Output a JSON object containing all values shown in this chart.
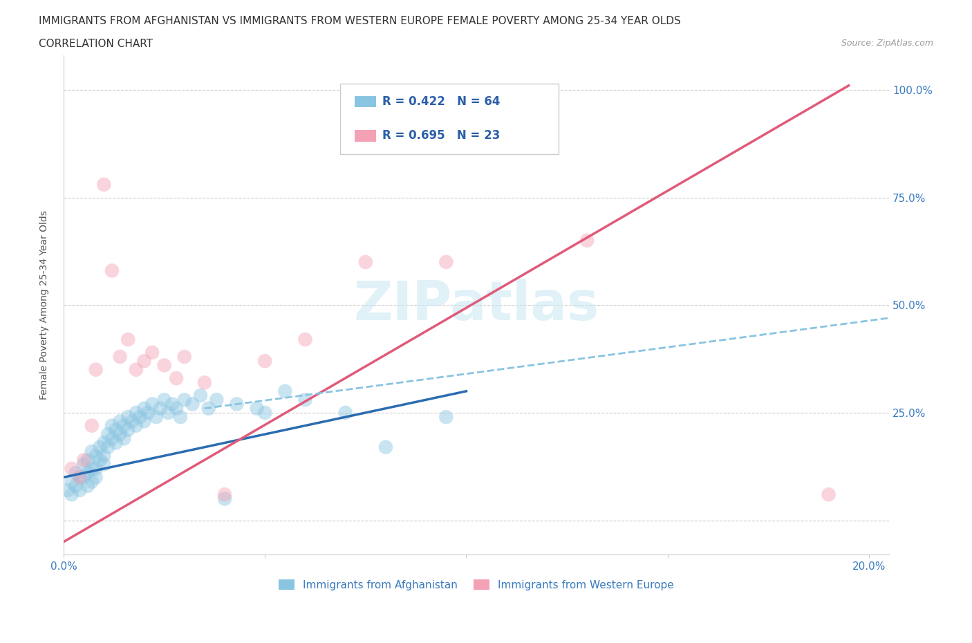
{
  "title_line1": "IMMIGRANTS FROM AFGHANISTAN VS IMMIGRANTS FROM WESTERN EUROPE FEMALE POVERTY AMONG 25-34 YEAR OLDS",
  "title_line2": "CORRELATION CHART",
  "source_text": "Source: ZipAtlas.com",
  "ylabel": "Female Poverty Among 25-34 Year Olds",
  "xlim": [
    0.0,
    0.205
  ],
  "ylim": [
    -0.08,
    1.08
  ],
  "xticks": [
    0.0,
    0.05,
    0.1,
    0.15,
    0.2
  ],
  "xticklabels": [
    "0.0%",
    "",
    "",
    "",
    "20.0%"
  ],
  "yticks": [
    0.0,
    0.25,
    0.5,
    0.75,
    1.0
  ],
  "yticklabels_right": [
    "",
    "25.0%",
    "50.0%",
    "75.0%",
    "100.0%"
  ],
  "color_blue": "#89c4e1",
  "color_pink": "#f4a0b5",
  "trendline_blue": "#2b6cb0",
  "trendline_pink": "#e05a7a",
  "trendline_dashed_color": "#89c4e1",
  "legend_r_blue": "R = 0.422",
  "legend_n_blue": "N = 64",
  "legend_r_pink": "R = 0.695",
  "legend_n_pink": "N = 23",
  "legend_label_blue": "Immigrants from Afghanistan",
  "legend_label_pink": "Immigrants from Western Europe",
  "watermark": "ZIPatlas",
  "title_fontsize": 11,
  "label_fontsize": 10,
  "tick_fontsize": 11,
  "blue_scatter": [
    [
      0.001,
      0.07
    ],
    [
      0.002,
      0.09
    ],
    [
      0.002,
      0.06
    ],
    [
      0.003,
      0.11
    ],
    [
      0.003,
      0.08
    ],
    [
      0.004,
      0.1
    ],
    [
      0.004,
      0.07
    ],
    [
      0.005,
      0.13
    ],
    [
      0.005,
      0.1
    ],
    [
      0.006,
      0.14
    ],
    [
      0.006,
      0.11
    ],
    [
      0.006,
      0.08
    ],
    [
      0.007,
      0.12
    ],
    [
      0.007,
      0.09
    ],
    [
      0.007,
      0.16
    ],
    [
      0.008,
      0.15
    ],
    [
      0.008,
      0.12
    ],
    [
      0.008,
      0.1
    ],
    [
      0.009,
      0.17
    ],
    [
      0.009,
      0.14
    ],
    [
      0.01,
      0.18
    ],
    [
      0.01,
      0.15
    ],
    [
      0.01,
      0.13
    ],
    [
      0.011,
      0.2
    ],
    [
      0.011,
      0.17
    ],
    [
      0.012,
      0.19
    ],
    [
      0.012,
      0.22
    ],
    [
      0.013,
      0.21
    ],
    [
      0.013,
      0.18
    ],
    [
      0.014,
      0.23
    ],
    [
      0.014,
      0.2
    ],
    [
      0.015,
      0.22
    ],
    [
      0.015,
      0.19
    ],
    [
      0.016,
      0.24
    ],
    [
      0.016,
      0.21
    ],
    [
      0.017,
      0.23
    ],
    [
      0.018,
      0.25
    ],
    [
      0.018,
      0.22
    ],
    [
      0.019,
      0.24
    ],
    [
      0.02,
      0.26
    ],
    [
      0.02,
      0.23
    ],
    [
      0.021,
      0.25
    ],
    [
      0.022,
      0.27
    ],
    [
      0.023,
      0.24
    ],
    [
      0.024,
      0.26
    ],
    [
      0.025,
      0.28
    ],
    [
      0.026,
      0.25
    ],
    [
      0.027,
      0.27
    ],
    [
      0.028,
      0.26
    ],
    [
      0.029,
      0.24
    ],
    [
      0.03,
      0.28
    ],
    [
      0.032,
      0.27
    ],
    [
      0.034,
      0.29
    ],
    [
      0.036,
      0.26
    ],
    [
      0.038,
      0.28
    ],
    [
      0.04,
      0.05
    ],
    [
      0.043,
      0.27
    ],
    [
      0.048,
      0.26
    ],
    [
      0.05,
      0.25
    ],
    [
      0.055,
      0.3
    ],
    [
      0.06,
      0.28
    ],
    [
      0.07,
      0.25
    ],
    [
      0.08,
      0.17
    ],
    [
      0.095,
      0.24
    ]
  ],
  "pink_scatter": [
    [
      0.002,
      0.12
    ],
    [
      0.004,
      0.1
    ],
    [
      0.005,
      0.14
    ],
    [
      0.007,
      0.22
    ],
    [
      0.008,
      0.35
    ],
    [
      0.01,
      0.78
    ],
    [
      0.012,
      0.58
    ],
    [
      0.014,
      0.38
    ],
    [
      0.016,
      0.42
    ],
    [
      0.018,
      0.35
    ],
    [
      0.02,
      0.37
    ],
    [
      0.022,
      0.39
    ],
    [
      0.025,
      0.36
    ],
    [
      0.028,
      0.33
    ],
    [
      0.03,
      0.38
    ],
    [
      0.035,
      0.32
    ],
    [
      0.04,
      0.06
    ],
    [
      0.05,
      0.37
    ],
    [
      0.06,
      0.42
    ],
    [
      0.075,
      0.6
    ],
    [
      0.095,
      0.6
    ],
    [
      0.13,
      0.65
    ],
    [
      0.19,
      0.06
    ]
  ],
  "blue_trendline_x": [
    0.0,
    0.1
  ],
  "blue_trendline_y": [
    0.1,
    0.3
  ],
  "pink_trendline_x": [
    0.0,
    0.195
  ],
  "pink_trendline_y": [
    -0.05,
    1.01
  ],
  "dashed_trendline_x": [
    0.035,
    0.205
  ],
  "dashed_trendline_y": [
    0.26,
    0.47
  ]
}
